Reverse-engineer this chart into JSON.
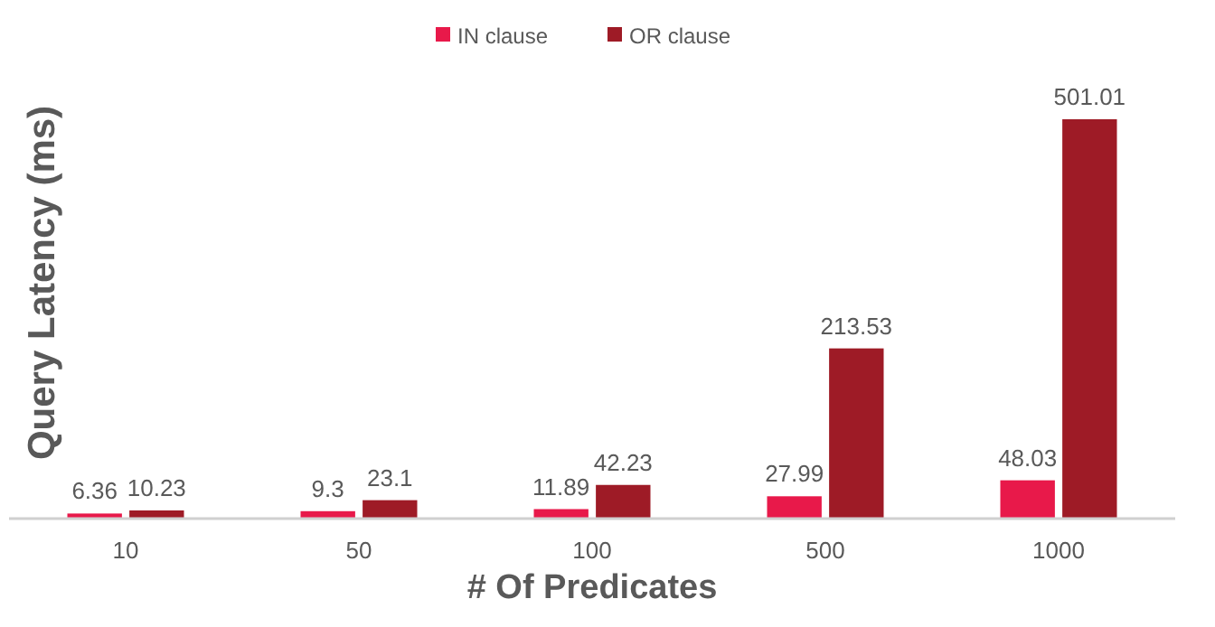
{
  "chart_data": {
    "type": "bar",
    "xlabel": "# Of Predicates",
    "ylabel": "Query Latency (ms)",
    "categories": [
      "10",
      "50",
      "100",
      "500",
      "1000"
    ],
    "series": [
      {
        "name": "IN clause",
        "color": "#e8194a",
        "values": [
          6.36,
          9.3,
          11.89,
          27.99,
          48.03
        ]
      },
      {
        "name": "OR clause",
        "color": "#9e1b26",
        "values": [
          10.23,
          23.1,
          42.23,
          213.53,
          501.01
        ]
      }
    ],
    "data_labels": true,
    "legend": "top"
  }
}
